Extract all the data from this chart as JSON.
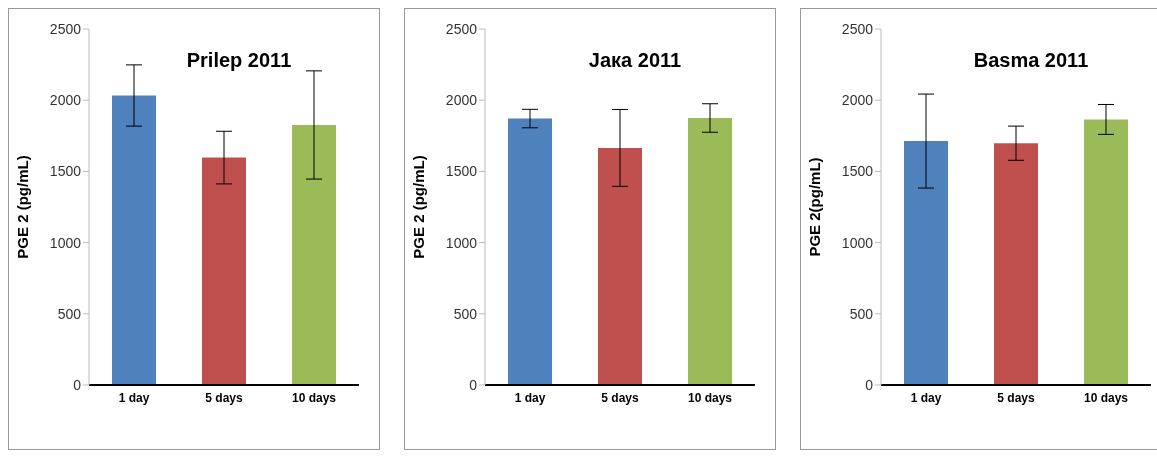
{
  "chart_data": [
    {
      "type": "bar",
      "title": "Prilep 2011",
      "ylabel": "PGE 2 (pg/mL)",
      "categories": [
        "1 day",
        "5 days",
        "10 days"
      ],
      "values": [
        2033,
        1597,
        1826
      ],
      "colors": [
        "#4f81bd",
        "#c0504d",
        "#9bbb59"
      ],
      "errors": [
        215,
        185,
        380
      ],
      "ylim": [
        0,
        2500
      ],
      "yticks": [
        0,
        500,
        1000,
        1500,
        2000,
        2500
      ],
      "grid": false
    },
    {
      "type": "bar",
      "title": "Јака 2011",
      "ylabel": "PGE 2 (pg/mL)",
      "categories": [
        "1 day",
        "5 days",
        "10 days"
      ],
      "values": [
        1871,
        1665,
        1875
      ],
      "colors": [
        "#4f81bd",
        "#c0504d",
        "#9bbb59"
      ],
      "errors": [
        65,
        270,
        100
      ],
      "ylim": [
        0,
        2500
      ],
      "yticks": [
        0,
        500,
        1000,
        1500,
        2000,
        2500
      ],
      "grid": false
    },
    {
      "type": "bar",
      "title": "Basma 2011",
      "ylabel": "PGE 2(pg/mL)",
      "categories": [
        "1 day",
        "5 days",
        "10 days"
      ],
      "values": [
        1713,
        1698,
        1865
      ],
      "colors": [
        "#4f81bd",
        "#c0504d",
        "#9bbb59"
      ],
      "errors": [
        330,
        120,
        105
      ],
      "ylim": [
        0,
        2500
      ],
      "yticks": [
        0,
        500,
        1000,
        1500,
        2000,
        2500
      ],
      "grid": false
    }
  ]
}
